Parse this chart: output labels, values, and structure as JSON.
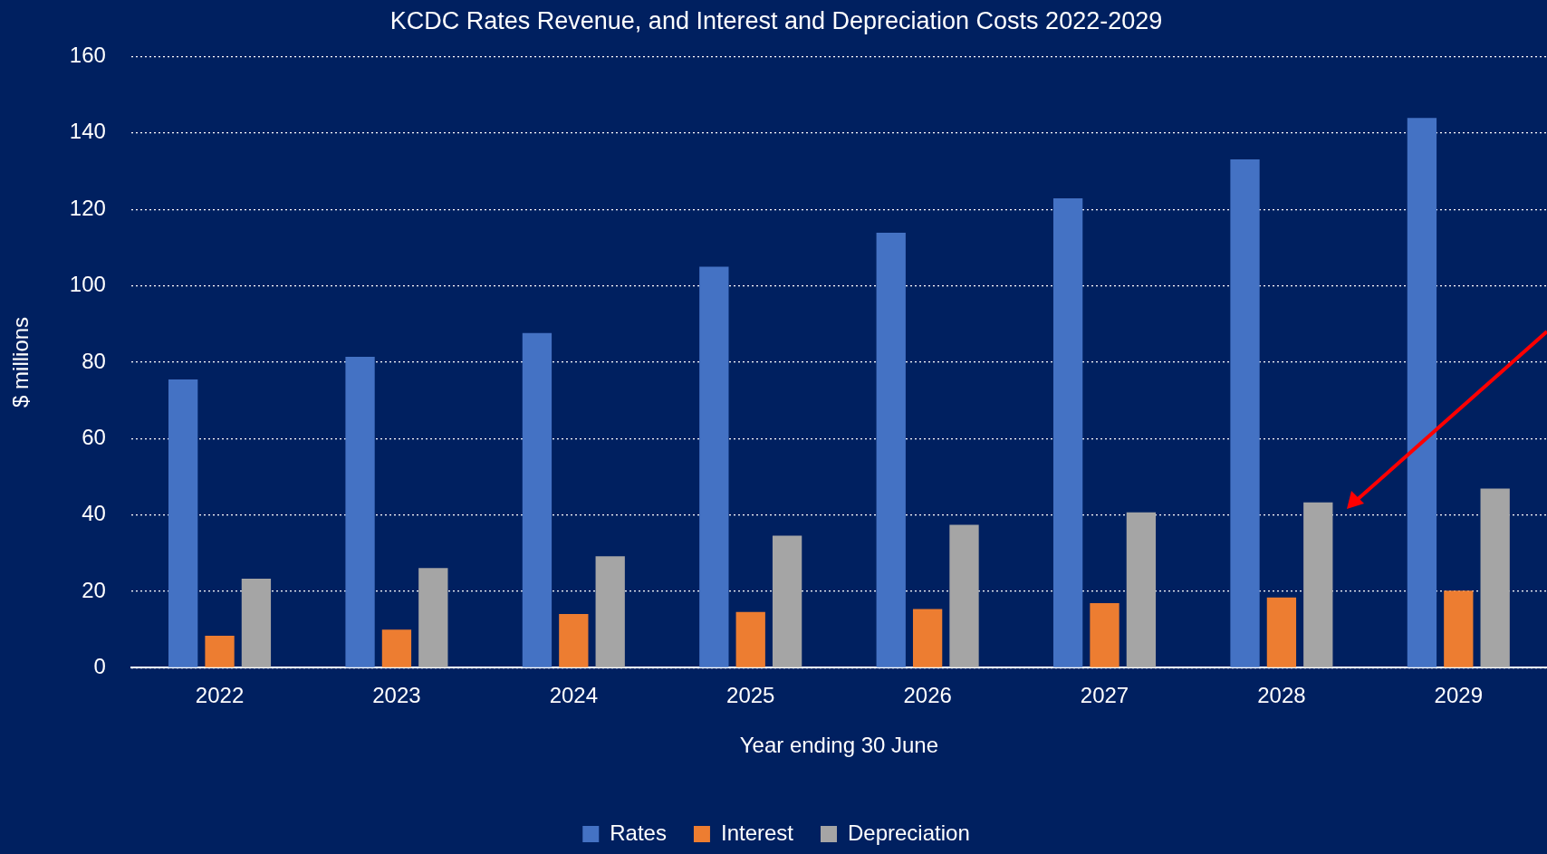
{
  "chart_data": {
    "type": "bar",
    "title": "KCDC Rates Revenue, and Interest and Depreciation Costs 2022-2029",
    "xlabel": "Year ending 30 June",
    "ylabel": "$ millions",
    "categories": [
      "2022",
      "2023",
      "2024",
      "2025",
      "2026",
      "2027",
      "2028",
      "2029"
    ],
    "series": [
      {
        "name": "Rates",
        "color": "#4472c4",
        "values": [
          75.5,
          81.4,
          87.6,
          105,
          113.9,
          122.9,
          133.1,
          143.9
        ]
      },
      {
        "name": "Interest",
        "color": "#ed7d31",
        "values": [
          8.4,
          10,
          14.1,
          14.6,
          15.4,
          16.9,
          18.4,
          20.2
        ]
      },
      {
        "name": "Depreciation",
        "color": "#a5a5a5",
        "values": [
          23.3,
          26.1,
          29.2,
          34.6,
          37.4,
          40.7,
          43.3,
          46.9
        ]
      }
    ],
    "ylim": [
      0,
      160
    ],
    "yticks": [
      0,
      20,
      40,
      60,
      80,
      100,
      120,
      140,
      160
    ],
    "grid": "y",
    "legend": "bottom"
  }
}
